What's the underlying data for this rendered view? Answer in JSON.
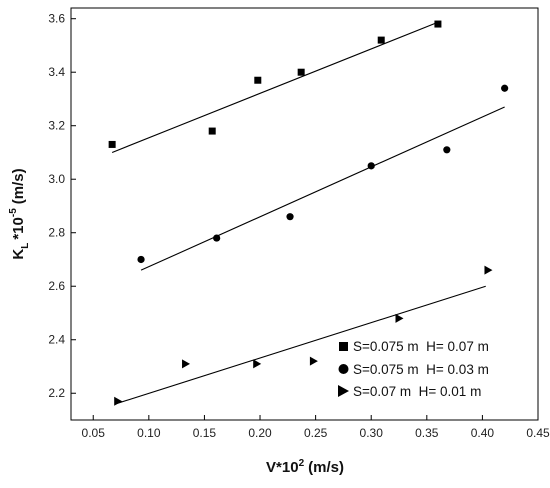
{
  "chart_data": {
    "type": "scatter",
    "xlabel": "V*10",
    "xlabel_sup": "2",
    "xlabel_unit": "(m/s)",
    "ylabel": "K",
    "ylabel_sub": "L",
    "ylabel_mid": "*10",
    "ylabel_sup": "-5",
    "ylabel_unit": "(m/s)",
    "xlim": [
      0.03,
      0.45
    ],
    "ylim": [
      2.1,
      3.64
    ],
    "xticks": [
      "0.05",
      "0.10",
      "0.15",
      "0.20",
      "0.25",
      "0.30",
      "0.35",
      "0.40",
      "0.45"
    ],
    "yticks": [
      "2.2",
      "2.4",
      "2.6",
      "2.8",
      "3.0",
      "3.2",
      "3.4",
      "3.6"
    ],
    "grid": false,
    "legend_position": "bottom-right",
    "series": [
      {
        "name": "S=0.075 m  H= 0.07 m",
        "marker": "square",
        "x": [
          0.067,
          0.157,
          0.198,
          0.237,
          0.309,
          0.36
        ],
        "y": [
          3.13,
          3.18,
          3.37,
          3.4,
          3.52,
          3.58
        ],
        "fit": [
          [
            0.067,
            3.1
          ],
          [
            0.362,
            3.59
          ]
        ]
      },
      {
        "name": "S=0.075 m  H= 0.03 m",
        "marker": "circle",
        "x": [
          0.093,
          0.161,
          0.227,
          0.3,
          0.368,
          0.42
        ],
        "y": [
          2.7,
          2.78,
          2.86,
          3.05,
          3.11,
          3.34
        ],
        "fit": [
          [
            0.093,
            2.66
          ],
          [
            0.42,
            3.27
          ]
        ]
      },
      {
        "name": "S=0.07 m  H= 0.01 m",
        "marker": "triangle-right",
        "x": [
          0.072,
          0.133,
          0.197,
          0.248,
          0.325,
          0.405
        ],
        "y": [
          2.17,
          2.31,
          2.31,
          2.32,
          2.48,
          2.66
        ],
        "fit": [
          [
            0.07,
            2.16
          ],
          [
            0.403,
            2.6
          ]
        ]
      }
    ]
  }
}
